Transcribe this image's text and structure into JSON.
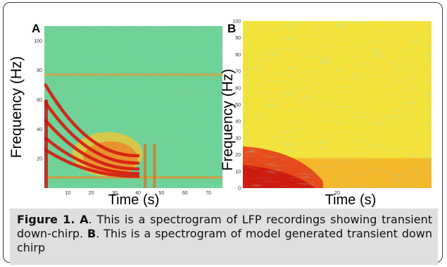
{
  "chart_data": [
    {
      "type": "heatmap",
      "panel_label": "A",
      "xlabel": "Time (s)",
      "ylabel": "Frequency (Hz)",
      "xlim": [
        0,
        76
      ],
      "ylim": [
        0,
        110
      ],
      "xticks": [
        10,
        20,
        30,
        40,
        50,
        60,
        70
      ],
      "yticks": [
        20,
        40,
        60,
        80,
        100
      ],
      "colormap": "jet",
      "features": {
        "down_chirp_tracks": [
          {
            "start_hz": 70,
            "end_hz": 22,
            "end_s": 40
          },
          {
            "start_hz": 58,
            "end_hz": 17,
            "end_s": 40
          },
          {
            "start_hz": 46,
            "end_hz": 13,
            "end_s": 40
          },
          {
            "start_hz": 34,
            "end_hz": 10,
            "end_s": 40
          },
          {
            "start_hz": 26,
            "end_hz": 8,
            "end_s": 40
          }
        ],
        "line_noise_hz": 77,
        "low_line_hz": 7,
        "hot_blob": {
          "t_start": 12,
          "t_end": 42,
          "f_low": 8,
          "f_high": 38
        }
      }
    },
    {
      "type": "heatmap",
      "panel_label": "B",
      "xlabel": "Time (s)",
      "ylabel": "Frequency (Hz)",
      "xlim": [
        0,
        40
      ],
      "ylim": [
        0,
        100
      ],
      "xticks": [
        20
      ],
      "yticks": [
        0,
        10,
        20,
        30,
        40,
        50,
        60,
        70,
        80,
        90,
        100
      ],
      "colormap": "jet",
      "features": {
        "low_freq_hot_region": {
          "t_end": 17,
          "f_high": 25
        },
        "warm_band_hz": [
          0,
          18
        ],
        "transient_down_chirp": true
      }
    }
  ],
  "caption": {
    "label": "Figure 1.",
    "a_label": "A",
    "a_text": ". This is a spectrogram of LFP recordings showing transient down-chirp.",
    "b_label": "B",
    "b_text": ". This is a spectrogram of model generated transient down chirp"
  }
}
